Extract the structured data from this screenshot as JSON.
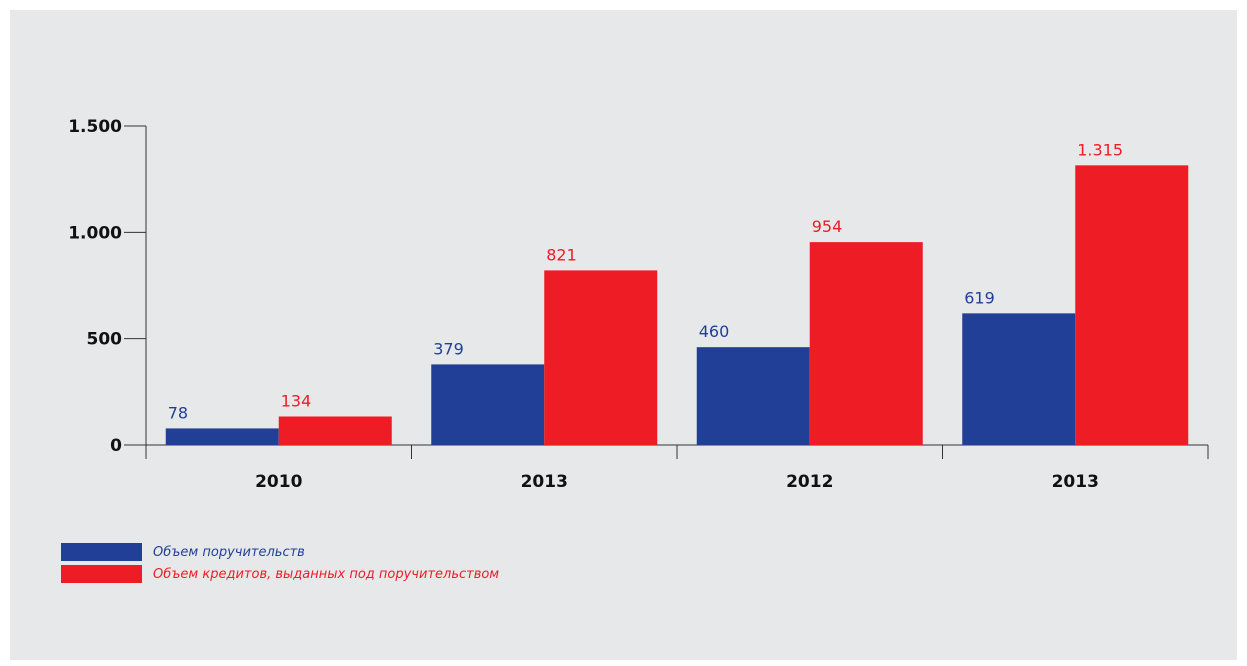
{
  "colors": {
    "series_1": "#213f97",
    "series_2": "#ee1c25",
    "axis": "#333333",
    "background": "#e7e8e9"
  },
  "chart_data": {
    "type": "bar",
    "title": "",
    "xlabel": "",
    "ylabel": "",
    "categories": [
      "2010",
      "2013",
      "2012",
      "2013"
    ],
    "series": [
      {
        "name": "Объем поручительств",
        "values": [
          78,
          379,
          460,
          619
        ],
        "value_labels": [
          "78",
          "379",
          "460",
          "619"
        ]
      },
      {
        "name": "Объем кредитов, выданных под поручительством",
        "values": [
          134,
          821,
          954,
          1315
        ],
        "value_labels": [
          "134",
          "821",
          "954",
          "1.315"
        ]
      }
    ],
    "ylim": [
      0,
      1500
    ],
    "yticks": [
      0,
      500,
      1000,
      1500
    ],
    "ytick_labels": [
      "0",
      "500",
      "1.000",
      "1.500"
    ],
    "grid": false,
    "legend_position": "bottom-left"
  },
  "legend": {
    "items": [
      {
        "label": "Объем поручительств"
      },
      {
        "label": "Объем кредитов, выданных под поручительством"
      }
    ]
  }
}
